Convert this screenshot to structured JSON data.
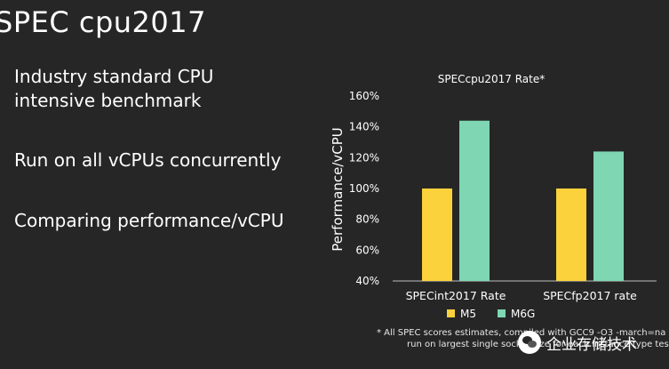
{
  "slide": {
    "title": "SPEC cpu2017",
    "bullets": [
      "Industry standard CPU\nintensive benchmark",
      "Run on all vCPUs concurrently",
      "Comparing performance/vCPU"
    ]
  },
  "chart_data": {
    "type": "bar",
    "title": "SPECcpu2017 Rate*",
    "ylabel": "Performance/vCPU",
    "xlabel": "",
    "categories": [
      "SPECint2017 Rate",
      "SPECfp2017 rate"
    ],
    "series": [
      {
        "name": "M5",
        "values": [
          100,
          100
        ],
        "color": "#fbd13c"
      },
      {
        "name": "M6G",
        "values": [
          144,
          124
        ],
        "color": "#7ed6b3"
      }
    ],
    "ylim": [
      40,
      160
    ],
    "yticks": [
      40,
      60,
      80,
      100,
      120,
      140,
      160
    ],
    "tick_format": "%",
    "grid": false,
    "legend": "bottom"
  },
  "footnote": {
    "line1": "* All SPEC scores estimates, compiled with GCC9 -O3 -march=na",
    "line2": "run on largest single socket size for each instance type tes"
  },
  "watermark": {
    "text": "企业存储技术",
    "icon": "wechat-icon"
  }
}
